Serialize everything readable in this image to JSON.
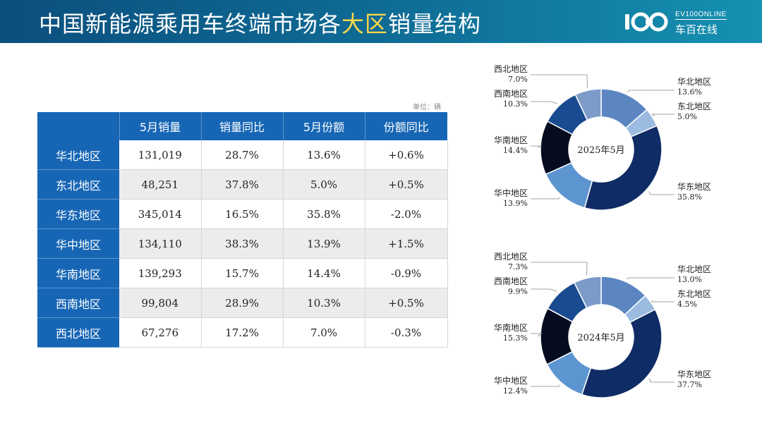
{
  "header": {
    "title_prefix": "中国新能源乘用车终端市场各",
    "title_highlight": "大区",
    "title_suffix": "销量结构",
    "logo_en": "EV100ONLINE",
    "logo_cn": "车百在线",
    "colors": {
      "title_highlight": "#ffd84a",
      "bar_start": "#0b4f7e",
      "bar_end": "#1591b1"
    }
  },
  "table": {
    "unit_label": "单位：辆",
    "columns": [
      "",
      "5月销量",
      "销量同比",
      "5月份额",
      "份额同比"
    ],
    "rows": [
      {
        "region": "华北地区",
        "sales": "131,019",
        "yoy": "28.7%",
        "share": "13.6%",
        "share_change": "+0.6%"
      },
      {
        "region": "东北地区",
        "sales": "48,251",
        "yoy": "37.8%",
        "share": "5.0%",
        "share_change": "+0.5%"
      },
      {
        "region": "华东地区",
        "sales": "345,014",
        "yoy": "16.5%",
        "share": "35.8%",
        "share_change": "-2.0%"
      },
      {
        "region": "华中地区",
        "sales": "134,110",
        "yoy": "38.3%",
        "share": "13.9%",
        "share_change": "+1.5%"
      },
      {
        "region": "华南地区",
        "sales": "139,293",
        "yoy": "15.7%",
        "share": "14.4%",
        "share_change": "-0.9%"
      },
      {
        "region": "西南地区",
        "sales": "99,804",
        "yoy": "28.9%",
        "share": "10.3%",
        "share_change": "+0.5%"
      },
      {
        "region": "西北地区",
        "sales": "67,276",
        "yoy": "17.2%",
        "share": "7.0%",
        "share_change": "-0.3%"
      }
    ],
    "colors": {
      "header_bg": "#1766b5",
      "alt_row": "#ececec"
    }
  },
  "chart_data": [
    {
      "type": "pie",
      "center_label": "2025年5月",
      "categories": [
        "华北地区",
        "东北地区",
        "华东地区",
        "华中地区",
        "华南地区",
        "西南地区",
        "西北地区"
      ],
      "values": [
        13.6,
        5.0,
        35.8,
        13.9,
        14.4,
        10.3,
        7.0
      ],
      "labels": [
        "13.6%",
        "5.0%",
        "35.8%",
        "13.9%",
        "14.4%",
        "10.3%",
        "7.0%"
      ],
      "colors": [
        "#5b86c1",
        "#9bbbe0",
        "#0f2c66",
        "#5d95d1",
        "#050c1f",
        "#1a4a90",
        "#7d9bc9"
      ]
    },
    {
      "type": "pie",
      "center_label": "2024年5月",
      "categories": [
        "华北地区",
        "东北地区",
        "华东地区",
        "华中地区",
        "华南地区",
        "西南地区",
        "西北地区"
      ],
      "values": [
        13.0,
        4.5,
        37.7,
        12.4,
        15.3,
        9.9,
        7.3
      ],
      "labels": [
        "13.0%",
        "4.5%",
        "37.7%",
        "12.4%",
        "15.3%",
        "9.9%",
        "7.3%"
      ],
      "colors": [
        "#5b86c1",
        "#9bbbe0",
        "#0f2c66",
        "#5d95d1",
        "#050c1f",
        "#1a4a90",
        "#7d9bc9"
      ]
    }
  ]
}
